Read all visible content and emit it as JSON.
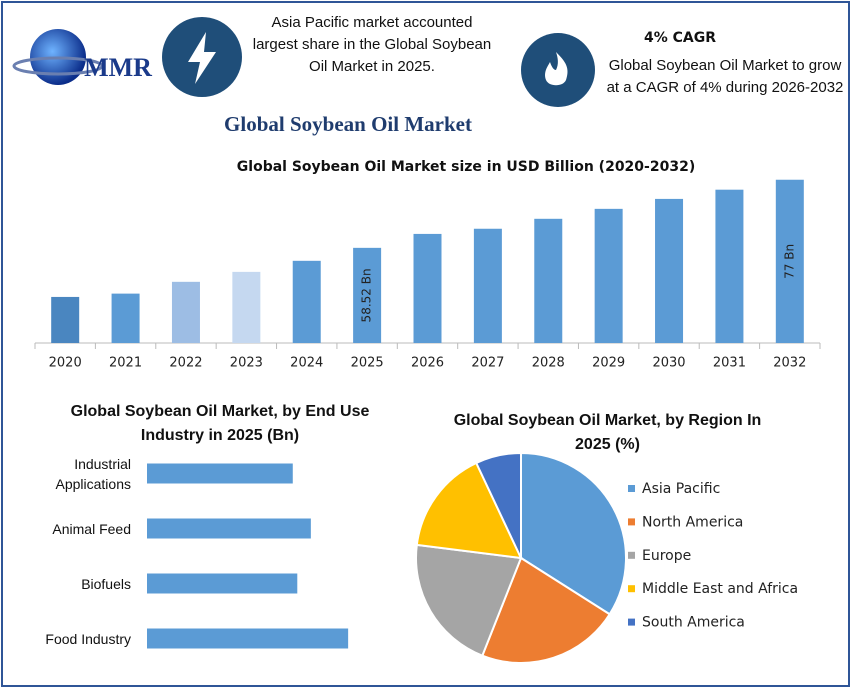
{
  "header": {
    "logo": "MMR",
    "highlight_1": "Asia Pacific market accounted largest share in the Global Soybean Oil Market in 2025.",
    "cagr_title": "4% CAGR",
    "highlight_2": "Global Soybean Oil Market to grow at a CAGR of 4% during 2026-2032",
    "title": "Global Soybean Oil Market"
  },
  "chart_data": [
    {
      "type": "bar",
      "title": "Global Soybean Oil Market size in USD Billion (2020-2032)",
      "categories": [
        "2020",
        "2021",
        "2022",
        "2023",
        "2024",
        "2025",
        "2026",
        "2027",
        "2028",
        "2029",
        "2030",
        "2031",
        "2032"
      ],
      "values": [
        45.2,
        46.1,
        49.3,
        52.0,
        55.0,
        58.52,
        62.3,
        63.7,
        66.4,
        69.1,
        71.8,
        74.3,
        77
      ],
      "value_labels": [
        null,
        null,
        null,
        null,
        null,
        "58.52 Bn",
        null,
        null,
        null,
        null,
        null,
        null,
        "77 Bn"
      ],
      "colors": [
        "#4a86c0",
        "#5b9bd5",
        "#9dbde4",
        "#c5d8f0",
        "#5b9bd5",
        "#5b9bd5",
        "#5b9bd5",
        "#5b9bd5",
        "#5b9bd5",
        "#5b9bd5",
        "#5b9bd5",
        "#5b9bd5",
        "#5b9bd5"
      ],
      "ylim": [
        32.7,
        81
      ]
    },
    {
      "type": "bar",
      "orientation": "horizontal",
      "title": "Global Soybean Oil Market, by End Use Industry  in 2025 (Bn)",
      "categories": [
        "Industrial Applications",
        "Animal Feed",
        "Biofuels",
        "Food Industry"
      ],
      "values": [
        12.9,
        14.5,
        13.3,
        17.8
      ],
      "color": "#5b9bd5",
      "xlim": [
        0,
        20
      ]
    },
    {
      "type": "pie",
      "title": "Global Soybean Oil Market, by Region In 2025 (%)",
      "categories": [
        "Asia Pacific",
        "North America",
        "Europe",
        "Middle East and Africa",
        "South America"
      ],
      "values": [
        34,
        22,
        21,
        16,
        7
      ],
      "colors": [
        "#5b9bd5",
        "#ed7d31",
        "#a5a5a5",
        "#ffc000",
        "#4472c4"
      ],
      "legend": "right"
    }
  ]
}
